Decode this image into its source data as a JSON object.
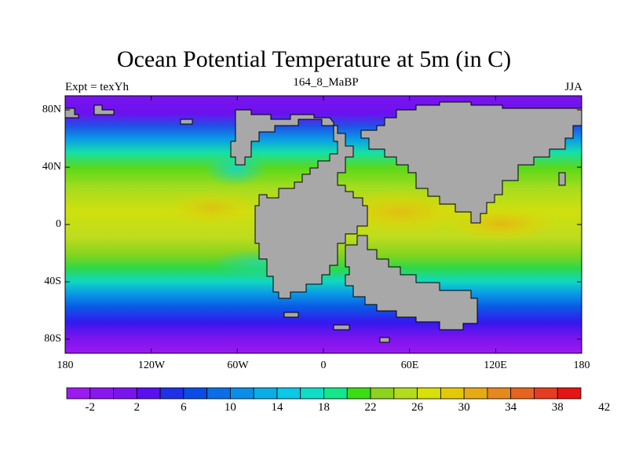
{
  "title": "Ocean Potential Temperature at 5m (in C)",
  "left_label": "Expt = texYh",
  "center_label": "164_8_MaBP",
  "right_label": "JJA",
  "map": {
    "lon_ticks": [
      "180",
      "120W",
      "60W",
      "0",
      "60E",
      "120E",
      "180"
    ],
    "lat_ticks": [
      "80N",
      "40N",
      "0",
      "40S",
      "80S"
    ],
    "land_color": "#a8a8a8",
    "projection": "cylindrical-equidistant",
    "lon_range": [
      -180,
      180
    ],
    "lat_range": [
      -90,
      90
    ]
  },
  "colorbar": {
    "labels": [
      "-2",
      "2",
      "6",
      "10",
      "14",
      "18",
      "22",
      "26",
      "30",
      "34",
      "38",
      "42"
    ],
    "colors": [
      "#9a1af0",
      "#8a16f0",
      "#7a14ee",
      "#5a10ee",
      "#2030e6",
      "#0a4ce6",
      "#0a6ee6",
      "#0a8ee8",
      "#0aaee6",
      "#0ac8e6",
      "#10dcc8",
      "#14e68c",
      "#3cdc14",
      "#8cd21e",
      "#b4dc1e",
      "#d8e00a",
      "#e6c80a",
      "#e6aa14",
      "#e6881e",
      "#e66420",
      "#e63c20",
      "#e61414"
    ]
  }
}
